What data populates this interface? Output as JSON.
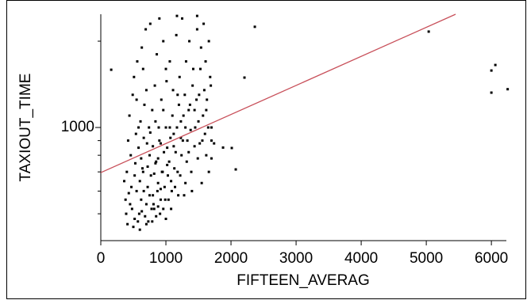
{
  "chart_data": {
    "type": "scatter",
    "x_label": "FIFTEEN_AVERAG",
    "y_label": "TAXIOUT_TIME",
    "xlim": [
      0,
      6230
    ],
    "xticks": [
      0,
      1000,
      2000,
      3000,
      4000,
      5000,
      6000
    ],
    "ylim": [
      403,
      2483
    ],
    "yscale": "log",
    "yticks": [
      1000
    ],
    "yminor_ticks": [
      500,
      600,
      700,
      800,
      900,
      2000
    ],
    "series": [
      {
        "color": "#000000",
        "x": [
          480,
          520,
          550,
          600,
          620,
          650,
          700,
          720,
          750,
          780,
          800,
          820,
          850,
          880,
          900,
          920,
          950,
          980,
          1000,
          1020,
          1050,
          1080,
          1100,
          1120,
          1150,
          1180,
          1200,
          1230,
          1260,
          1290,
          1320,
          1350,
          1380,
          1410,
          1440,
          1470,
          1500,
          1530,
          1560,
          1590,
          1620,
          1650,
          1680,
          1700,
          400,
          420,
          440,
          460,
          470,
          490,
          510,
          530,
          540,
          560,
          580,
          590,
          610,
          630,
          640,
          660,
          670,
          690,
          710,
          730,
          740,
          760,
          770,
          790,
          810,
          830,
          840,
          860,
          870,
          890,
          910,
          930,
          940,
          960,
          970,
          990,
          1010,
          1030,
          1060,
          1070,
          1090,
          1110,
          1130,
          1160,
          1170,
          1190,
          1210,
          1240,
          1250,
          1270,
          1300,
          1310,
          1330,
          1360,
          1370,
          1390,
          1420,
          1450,
          1480,
          1490,
          1510,
          1540,
          1570,
          1580,
          1610,
          1630,
          1660,
          1690,
          360,
          380,
          390,
          410,
          430,
          450,
          500,
          520,
          570,
          600,
          630,
          680,
          700,
          750,
          790,
          820,
          850,
          880,
          920,
          960,
          1000,
          1040,
          1080,
          1140,
          1220,
          1280,
          1400,
          1550,
          1620,
          1660,
          1700,
          900,
          1170,
          1480,
          1000,
          700,
          550,
          650,
          580,
          620,
          660,
          720,
          760,
          800,
          840,
          880,
          920,
          960,
          1020,
          1060,
          1120,
          1180,
          1230,
          1300,
          1350,
          1440,
          1520,
          1600,
          160,
          2366,
          2207,
          5037,
          6061,
          6000,
          6000,
          6250,
          2012,
          1878,
          2073,
          1740,
          1700
        ],
        "values": [
          520,
          480,
          600,
          650,
          560,
          700,
          540,
          620,
          800,
          520,
          580,
          690,
          760,
          640,
          900,
          560,
          700,
          620,
          1000,
          850,
          760,
          650,
          1100,
          950,
          820,
          700,
          1200,
          1050,
          900,
          1300,
          760,
          1150,
          980,
          1400,
          860,
          1250,
          1050,
          1600,
          900,
          1350,
          1150,
          1000,
          1500,
          780,
          700,
          900,
          1100,
          800,
          620,
          1300,
          1500,
          750,
          950,
          1700,
          850,
          500,
          1050,
          1900,
          720,
          600,
          1200,
          2200,
          880,
          470,
          1000,
          2300,
          680,
          1150,
          540,
          1400,
          750,
          1800,
          600,
          1000,
          500,
          1250,
          700,
          2000,
          820,
          560,
          1450,
          680,
          1700,
          920,
          600,
          1350,
          720,
          2100,
          1000,
          580,
          1500,
          800,
          2400,
          1100,
          640,
          1700,
          900,
          2000,
          1200,
          700,
          1600,
          1000,
          2200,
          780,
          1300,
          1900,
          1100,
          2300,
          1700,
          1250,
          2000,
          1400,
          650,
          560,
          500,
          460,
          590,
          540,
          450,
          680,
          470,
          440,
          510,
          490,
          460,
          580,
          470,
          520,
          490,
          530,
          610,
          520,
          480,
          560,
          520,
          620,
          680,
          580,
          600,
          640,
          800,
          700,
          900,
          2400,
          2450,
          2450,
          1600,
          1350,
          1250,
          1600,
          1000,
          780,
          920,
          730,
          960,
          860,
          1050,
          780,
          880,
          1150,
          740,
          1000,
          860,
          1300,
          920,
          1000,
          820,
          1150,
          880,
          950,
          1590,
          2245,
          1493,
          2160,
          1652,
          1580,
          1323,
          1360,
          848,
          851,
          714,
          880,
          1000
        ]
      }
    ],
    "fit": {
      "color": "#c8505a",
      "x": [
        0,
        5450
      ],
      "values": [
        696,
        2483
      ]
    }
  }
}
